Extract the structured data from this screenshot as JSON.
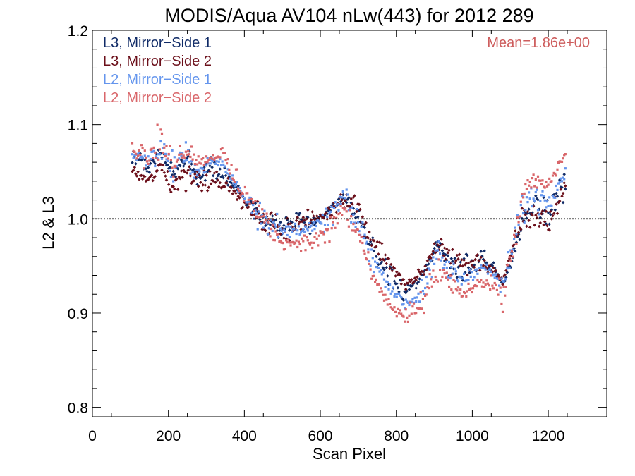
{
  "chart_data": {
    "type": "scatter",
    "title": "MODIS/Aqua AV104 nLw(443) for 2012 289",
    "xlabel": "Scan Pixel",
    "ylabel": "L2 & L3",
    "xlim": [
      0,
      1354
    ],
    "ylim": [
      0.79,
      1.2
    ],
    "xticks": [
      0,
      200,
      400,
      600,
      800,
      1000,
      1200
    ],
    "xtick_labels": [
      "0",
      "200",
      "400",
      "600",
      "800",
      "1000",
      "1200"
    ],
    "yticks": [
      0.8,
      0.9,
      1.0,
      1.1,
      1.2
    ],
    "ytick_labels": [
      "0.8",
      "0.9",
      "1.0",
      "1.1",
      "1.2"
    ],
    "reference_line": 1.0,
    "legend_placement": "top-left",
    "annotation": "Mean=1.86e+00",
    "annotation_color": "#cd5c5c",
    "series": [
      {
        "name": "L3, Mirror−Side 1",
        "color": "#0f2a66",
        "x_range": [
          105,
          1245
        ],
        "profile": [
          [
            105,
            1.065
          ],
          [
            150,
            1.055
          ],
          [
            180,
            1.07
          ],
          [
            210,
            1.05
          ],
          [
            250,
            1.06
          ],
          [
            280,
            1.045
          ],
          [
            310,
            1.055
          ],
          [
            340,
            1.05
          ],
          [
            370,
            1.035
          ],
          [
            400,
            1.02
          ],
          [
            430,
            1.01
          ],
          [
            460,
            1.0
          ],
          [
            500,
            0.99
          ],
          [
            540,
            0.995
          ],
          [
            580,
            0.995
          ],
          [
            620,
            1.005
          ],
          [
            660,
            1.025
          ],
          [
            700,
            1.005
          ],
          [
            740,
            0.965
          ],
          [
            780,
            0.945
          ],
          [
            820,
            0.925
          ],
          [
            850,
            0.93
          ],
          [
            880,
            0.945
          ],
          [
            910,
            0.975
          ],
          [
            940,
            0.955
          ],
          [
            980,
            0.945
          ],
          [
            1020,
            0.955
          ],
          [
            1060,
            0.945
          ],
          [
            1080,
            0.93
          ],
          [
            1100,
            0.95
          ],
          [
            1130,
            0.995
          ],
          [
            1160,
            1.015
          ],
          [
            1200,
            1.005
          ],
          [
            1245,
            1.04
          ]
        ]
      },
      {
        "name": "L3, Mirror−Side 2",
        "color": "#6b0f1a",
        "x_range": [
          105,
          1245
        ],
        "profile": [
          [
            105,
            1.05
          ],
          [
            150,
            1.04
          ],
          [
            180,
            1.055
          ],
          [
            210,
            1.035
          ],
          [
            250,
            1.05
          ],
          [
            280,
            1.04
          ],
          [
            310,
            1.045
          ],
          [
            340,
            1.04
          ],
          [
            370,
            1.03
          ],
          [
            400,
            1.015
          ],
          [
            430,
            1.005
          ],
          [
            460,
            0.995
          ],
          [
            500,
            0.99
          ],
          [
            540,
            0.995
          ],
          [
            580,
            1.0
          ],
          [
            620,
            1.005
          ],
          [
            660,
            1.025
          ],
          [
            700,
            1.01
          ],
          [
            740,
            0.975
          ],
          [
            780,
            0.955
          ],
          [
            820,
            0.93
          ],
          [
            850,
            0.935
          ],
          [
            880,
            0.95
          ],
          [
            910,
            0.975
          ],
          [
            940,
            0.96
          ],
          [
            980,
            0.95
          ],
          [
            1020,
            0.955
          ],
          [
            1060,
            0.945
          ],
          [
            1080,
            0.93
          ],
          [
            1100,
            0.96
          ],
          [
            1130,
            1.0
          ],
          [
            1160,
            1.005
          ],
          [
            1200,
            0.995
          ],
          [
            1245,
            1.035
          ]
        ]
      },
      {
        "name": "L2, Mirror−Side 1",
        "color": "#6495ed",
        "x_range": [
          105,
          1245
        ],
        "profile": [
          [
            105,
            1.07
          ],
          [
            150,
            1.06
          ],
          [
            180,
            1.075
          ],
          [
            210,
            1.055
          ],
          [
            250,
            1.065
          ],
          [
            280,
            1.05
          ],
          [
            310,
            1.06
          ],
          [
            340,
            1.06
          ],
          [
            370,
            1.04
          ],
          [
            400,
            1.025
          ],
          [
            430,
            1.01
          ],
          [
            460,
            1.0
          ],
          [
            500,
            0.985
          ],
          [
            540,
            0.99
          ],
          [
            580,
            0.99
          ],
          [
            620,
            1.0
          ],
          [
            660,
            1.02
          ],
          [
            700,
            0.995
          ],
          [
            740,
            0.955
          ],
          [
            780,
            0.93
          ],
          [
            820,
            0.91
          ],
          [
            850,
            0.915
          ],
          [
            880,
            0.935
          ],
          [
            910,
            0.96
          ],
          [
            940,
            0.945
          ],
          [
            980,
            0.935
          ],
          [
            1020,
            0.95
          ],
          [
            1060,
            0.94
          ],
          [
            1080,
            0.925
          ],
          [
            1100,
            0.96
          ],
          [
            1130,
            1.01
          ],
          [
            1160,
            1.025
          ],
          [
            1200,
            1.02
          ],
          [
            1245,
            1.05
          ]
        ]
      },
      {
        "name": "L2, Mirror−Side 2",
        "color": "#d9666a",
        "x_range": [
          105,
          1245
        ],
        "profile": [
          [
            105,
            1.075
          ],
          [
            150,
            1.065
          ],
          [
            180,
            1.08
          ],
          [
            210,
            1.06
          ],
          [
            250,
            1.075
          ],
          [
            280,
            1.06
          ],
          [
            310,
            1.065
          ],
          [
            340,
            1.07
          ],
          [
            370,
            1.045
          ],
          [
            400,
            1.03
          ],
          [
            430,
            1.01
          ],
          [
            460,
            0.995
          ],
          [
            500,
            0.975
          ],
          [
            540,
            0.975
          ],
          [
            580,
            0.975
          ],
          [
            620,
            0.985
          ],
          [
            660,
            1.01
          ],
          [
            700,
            0.985
          ],
          [
            740,
            0.935
          ],
          [
            780,
            0.91
          ],
          [
            820,
            0.895
          ],
          [
            850,
            0.9
          ],
          [
            880,
            0.92
          ],
          [
            910,
            0.945
          ],
          [
            940,
            0.93
          ],
          [
            980,
            0.92
          ],
          [
            1020,
            0.935
          ],
          [
            1060,
            0.93
          ],
          [
            1080,
            0.915
          ],
          [
            1100,
            0.955
          ],
          [
            1130,
            1.02
          ],
          [
            1160,
            1.04
          ],
          [
            1200,
            1.035
          ],
          [
            1245,
            1.07
          ]
        ]
      }
    ]
  }
}
